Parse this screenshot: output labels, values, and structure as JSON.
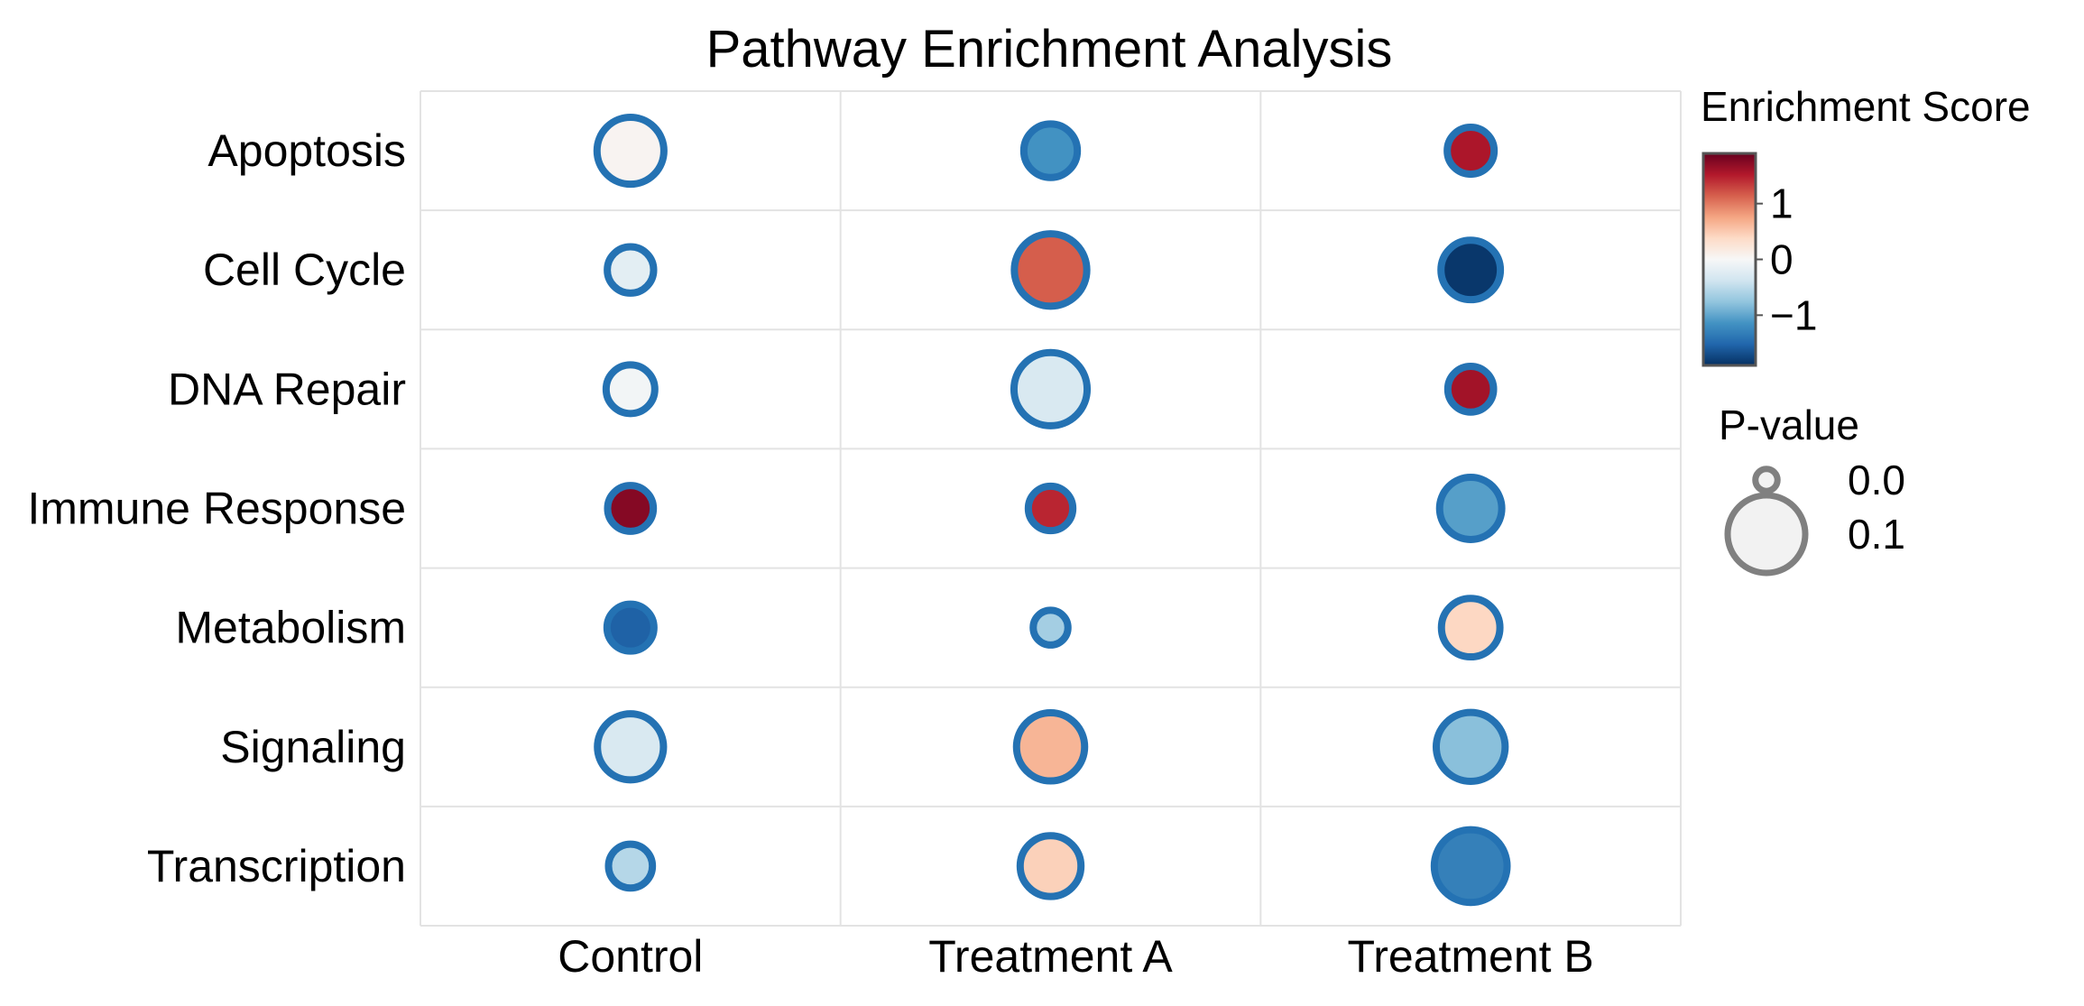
{
  "chart_data": {
    "type": "dot-heatmap",
    "title": "Pathway Enrichment Analysis",
    "xlabel": "",
    "ylabel": "",
    "categories_x": [
      "Control",
      "Treatment A",
      "Treatment B"
    ],
    "categories_y": [
      "Apoptosis",
      "Cell Cycle",
      "DNA Repair",
      "Immune Response",
      "Metabolism",
      "Signaling",
      "Transcription"
    ],
    "grid": true,
    "point_edge_color": "#2472b3",
    "points": [
      {
        "pathway": "Apoptosis",
        "condition": "Control",
        "enrichment_score": 0.05,
        "p_value": 0.072
      },
      {
        "pathway": "Apoptosis",
        "condition": "Treatment A",
        "enrichment_score": -1.15,
        "p_value": 0.043
      },
      {
        "pathway": "Apoptosis",
        "condition": "Treatment B",
        "enrichment_score": 1.55,
        "p_value": 0.031
      },
      {
        "pathway": "Cell Cycle",
        "condition": "Control",
        "enrichment_score": -0.2,
        "p_value": 0.03
      },
      {
        "pathway": "Cell Cycle",
        "condition": "Treatment A",
        "enrichment_score": 1.15,
        "p_value": 0.086
      },
      {
        "pathway": "Cell Cycle",
        "condition": "Treatment B",
        "enrichment_score": -1.85,
        "p_value": 0.055
      },
      {
        "pathway": "DNA Repair",
        "condition": "Control",
        "enrichment_score": -0.05,
        "p_value": 0.034
      },
      {
        "pathway": "DNA Repair",
        "condition": "Treatment A",
        "enrichment_score": -0.3,
        "p_value": 0.088
      },
      {
        "pathway": "DNA Repair",
        "condition": "Treatment B",
        "enrichment_score": 1.6,
        "p_value": 0.029
      },
      {
        "pathway": "Immune Response",
        "condition": "Control",
        "enrichment_score": 1.75,
        "p_value": 0.029
      },
      {
        "pathway": "Immune Response",
        "condition": "Treatment A",
        "enrichment_score": 1.45,
        "p_value": 0.027
      },
      {
        "pathway": "Immune Response",
        "condition": "Treatment B",
        "enrichment_score": -1.05,
        "p_value": 0.061
      },
      {
        "pathway": "Metabolism",
        "condition": "Control",
        "enrichment_score": -1.55,
        "p_value": 0.031
      },
      {
        "pathway": "Metabolism",
        "condition": "Treatment A",
        "enrichment_score": -0.65,
        "p_value": 0.013
      },
      {
        "pathway": "Metabolism",
        "condition": "Treatment B",
        "enrichment_score": 0.4,
        "p_value": 0.053
      },
      {
        "pathway": "Signaling",
        "condition": "Control",
        "enrichment_score": -0.3,
        "p_value": 0.07
      },
      {
        "pathway": "Signaling",
        "condition": "Treatment A",
        "enrichment_score": 0.65,
        "p_value": 0.075
      },
      {
        "pathway": "Signaling",
        "condition": "Treatment B",
        "enrichment_score": -0.8,
        "p_value": 0.077
      },
      {
        "pathway": "Transcription",
        "condition": "Control",
        "enrichment_score": -0.55,
        "p_value": 0.026
      },
      {
        "pathway": "Transcription",
        "condition": "Treatment A",
        "enrichment_score": 0.45,
        "p_value": 0.058
      },
      {
        "pathway": "Transcription",
        "condition": "Treatment B",
        "enrichment_score": -1.3,
        "p_value": 0.087
      }
    ],
    "colorbar": {
      "title": "Enrichment Score",
      "colormap": "RdBu_r",
      "range": [
        -1.9,
        1.9
      ],
      "ticks": [
        {
          "value": 1,
          "label": "1"
        },
        {
          "value": 0,
          "label": "0"
        },
        {
          "value": -1,
          "label": "−1"
        }
      ]
    },
    "size_legend": {
      "title": "P-value",
      "entries": [
        {
          "value": 0.0,
          "label": "0.0"
        },
        {
          "value": 0.1,
          "label": "0.1"
        }
      ]
    }
  }
}
